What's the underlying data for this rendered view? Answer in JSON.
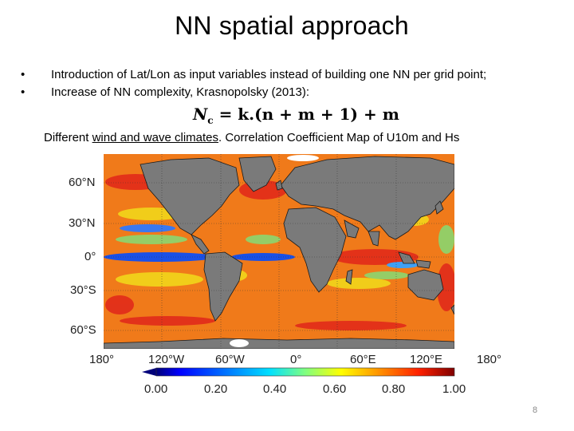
{
  "slide": {
    "title": "NN spatial approach",
    "bullets": [
      "Introduction of Lat/Lon as input variables instead of building one NN per grid point;",
      "Increase of NN complexity, Krasnopolsky (2013):"
    ],
    "formula": {
      "lhs": "N",
      "lhs_sub": "c",
      "rhs": "= k.(n + m + 1) + m"
    },
    "caption": {
      "prefix": "Different ",
      "underlined": "wind and wave climates",
      "suffix": ". Correlation Coefficient Map of U10m and Hs"
    },
    "page_number": "8"
  },
  "map": {
    "lat_labels": [
      "60°N",
      "30°N",
      "0°",
      "30°S",
      "60°S"
    ],
    "lon_labels": [
      "180°",
      "120°W",
      "60°W",
      "0°",
      "60°E",
      "120°E",
      "180°"
    ],
    "colorbar_labels": [
      "0.00",
      "0.20",
      "0.40",
      "0.60",
      "0.80",
      "1.00"
    ],
    "ocean_color": "#f07a1a",
    "land_color": "#7a7a7a"
  }
}
